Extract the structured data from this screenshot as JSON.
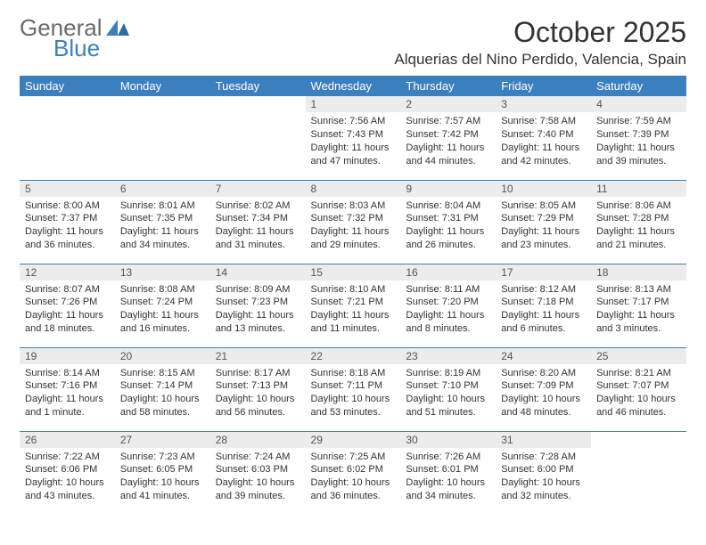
{
  "brand": {
    "word1": "General",
    "word2": "Blue",
    "color1": "#6a6a6a",
    "color2": "#3b7fbf"
  },
  "title": "October 2025",
  "location": "Alquerias del Nino Perdido, Valencia, Spain",
  "dayHeaders": [
    "Sunday",
    "Monday",
    "Tuesday",
    "Wednesday",
    "Thursday",
    "Friday",
    "Saturday"
  ],
  "colors": {
    "headerBg": "#3b7fbf",
    "headerText": "#ffffff",
    "dayNumBg": "#ececec",
    "ruleColor": "#3b7fbf",
    "bodyText": "#333333"
  },
  "weeks": [
    [
      null,
      null,
      null,
      {
        "n": "1",
        "sr": "7:56 AM",
        "ss": "7:43 PM",
        "dl": "11 hours and 47 minutes."
      },
      {
        "n": "2",
        "sr": "7:57 AM",
        "ss": "7:42 PM",
        "dl": "11 hours and 44 minutes."
      },
      {
        "n": "3",
        "sr": "7:58 AM",
        "ss": "7:40 PM",
        "dl": "11 hours and 42 minutes."
      },
      {
        "n": "4",
        "sr": "7:59 AM",
        "ss": "7:39 PM",
        "dl": "11 hours and 39 minutes."
      }
    ],
    [
      {
        "n": "5",
        "sr": "8:00 AM",
        "ss": "7:37 PM",
        "dl": "11 hours and 36 minutes."
      },
      {
        "n": "6",
        "sr": "8:01 AM",
        "ss": "7:35 PM",
        "dl": "11 hours and 34 minutes."
      },
      {
        "n": "7",
        "sr": "8:02 AM",
        "ss": "7:34 PM",
        "dl": "11 hours and 31 minutes."
      },
      {
        "n": "8",
        "sr": "8:03 AM",
        "ss": "7:32 PM",
        "dl": "11 hours and 29 minutes."
      },
      {
        "n": "9",
        "sr": "8:04 AM",
        "ss": "7:31 PM",
        "dl": "11 hours and 26 minutes."
      },
      {
        "n": "10",
        "sr": "8:05 AM",
        "ss": "7:29 PM",
        "dl": "11 hours and 23 minutes."
      },
      {
        "n": "11",
        "sr": "8:06 AM",
        "ss": "7:28 PM",
        "dl": "11 hours and 21 minutes."
      }
    ],
    [
      {
        "n": "12",
        "sr": "8:07 AM",
        "ss": "7:26 PM",
        "dl": "11 hours and 18 minutes."
      },
      {
        "n": "13",
        "sr": "8:08 AM",
        "ss": "7:24 PM",
        "dl": "11 hours and 16 minutes."
      },
      {
        "n": "14",
        "sr": "8:09 AM",
        "ss": "7:23 PM",
        "dl": "11 hours and 13 minutes."
      },
      {
        "n": "15",
        "sr": "8:10 AM",
        "ss": "7:21 PM",
        "dl": "11 hours and 11 minutes."
      },
      {
        "n": "16",
        "sr": "8:11 AM",
        "ss": "7:20 PM",
        "dl": "11 hours and 8 minutes."
      },
      {
        "n": "17",
        "sr": "8:12 AM",
        "ss": "7:18 PM",
        "dl": "11 hours and 6 minutes."
      },
      {
        "n": "18",
        "sr": "8:13 AM",
        "ss": "7:17 PM",
        "dl": "11 hours and 3 minutes."
      }
    ],
    [
      {
        "n": "19",
        "sr": "8:14 AM",
        "ss": "7:16 PM",
        "dl": "11 hours and 1 minute."
      },
      {
        "n": "20",
        "sr": "8:15 AM",
        "ss": "7:14 PM",
        "dl": "10 hours and 58 minutes."
      },
      {
        "n": "21",
        "sr": "8:17 AM",
        "ss": "7:13 PM",
        "dl": "10 hours and 56 minutes."
      },
      {
        "n": "22",
        "sr": "8:18 AM",
        "ss": "7:11 PM",
        "dl": "10 hours and 53 minutes."
      },
      {
        "n": "23",
        "sr": "8:19 AM",
        "ss": "7:10 PM",
        "dl": "10 hours and 51 minutes."
      },
      {
        "n": "24",
        "sr": "8:20 AM",
        "ss": "7:09 PM",
        "dl": "10 hours and 48 minutes."
      },
      {
        "n": "25",
        "sr": "8:21 AM",
        "ss": "7:07 PM",
        "dl": "10 hours and 46 minutes."
      }
    ],
    [
      {
        "n": "26",
        "sr": "7:22 AM",
        "ss": "6:06 PM",
        "dl": "10 hours and 43 minutes."
      },
      {
        "n": "27",
        "sr": "7:23 AM",
        "ss": "6:05 PM",
        "dl": "10 hours and 41 minutes."
      },
      {
        "n": "28",
        "sr": "7:24 AM",
        "ss": "6:03 PM",
        "dl": "10 hours and 39 minutes."
      },
      {
        "n": "29",
        "sr": "7:25 AM",
        "ss": "6:02 PM",
        "dl": "10 hours and 36 minutes."
      },
      {
        "n": "30",
        "sr": "7:26 AM",
        "ss": "6:01 PM",
        "dl": "10 hours and 34 minutes."
      },
      {
        "n": "31",
        "sr": "7:28 AM",
        "ss": "6:00 PM",
        "dl": "10 hours and 32 minutes."
      },
      null
    ]
  ],
  "labels": {
    "sunrise": "Sunrise:",
    "sunset": "Sunset:",
    "daylight": "Daylight:"
  }
}
